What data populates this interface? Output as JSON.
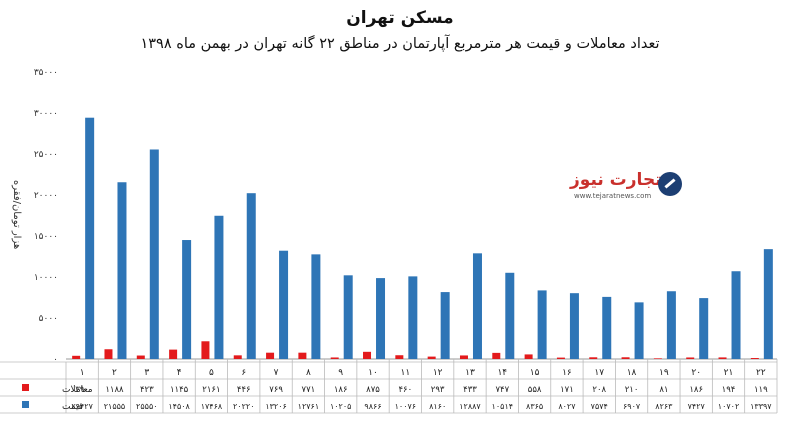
{
  "chart_data": {
    "type": "bar",
    "title": "مسکن تهران",
    "subtitle": "تعداد معاملات و قیمت هر مترمربع آپارتمان در مناطق ۲۲ گانه تهران در بهمن ماه ۱۳۹۸",
    "ylabel": "هزار تومان/فقره",
    "ylim": [
      0,
      35000
    ],
    "yticks": [
      "۰",
      "۵۰۰۰",
      "۱۰۰۰۰",
      "۱۵۰۰۰",
      "۲۰۰۰۰",
      "۲۵۰۰۰",
      "۳۰۰۰۰",
      "۳۵۰۰۰"
    ],
    "yticks_values": [
      0,
      5000,
      10000,
      15000,
      20000,
      25000,
      30000,
      35000
    ],
    "grid": false,
    "categories": [
      "۱",
      "۲",
      "۳",
      "۴",
      "۵",
      "۶",
      "۷",
      "۸",
      "۹",
      "۱۰",
      "۱۱",
      "۱۲",
      "۱۳",
      "۱۴",
      "۱۵",
      "۱۶",
      "۱۷",
      "۱۸",
      "۱۹",
      "۲۰",
      "۲۱",
      "۲۲"
    ],
    "series": [
      {
        "name": "معاملات",
        "color": "#e31a1c",
        "values": [
          390,
          1188,
          423,
          1145,
          2161,
          446,
          769,
          771,
          186,
          875,
          460,
          293,
          433,
          747,
          558,
          171,
          208,
          210,
          81,
          186,
          194,
          119
        ],
        "labels": [
          "۳۹۰",
          "۱۱۸۸",
          "۴۲۳",
          "۱۱۴۵",
          "۲۱۶۱",
          "۴۴۶",
          "۷۶۹",
          "۷۷۱",
          "۱۸۶",
          "۸۷۵",
          "۴۶۰",
          "۲۹۳",
          "۴۳۳",
          "۷۴۷",
          "۵۵۸",
          "۱۷۱",
          "۲۰۸",
          "۲۱۰",
          "۸۱",
          "۱۸۶",
          "۱۹۴",
          "۱۱۹"
        ]
      },
      {
        "name": "قیمت",
        "color": "#2e75b6",
        "values": [
          29427,
          21555,
          25550,
          14508,
          17468,
          20220,
          13206,
          12761,
          10205,
          9866,
          10076,
          8160,
          12887,
          10514,
          8365,
          8027,
          7574,
          6907,
          8263,
          7427,
          10702,
          13397
        ],
        "labels": [
          "۲۹۴۲۷",
          "۲۱۵۵۵",
          "۲۵۵۵۰",
          "۱۴۵۰۸",
          "۱۷۴۶۸",
          "۲۰۲۲۰",
          "۱۳۲۰۶",
          "۱۲۷۶۱",
          "۱۰۲۰۵",
          "۹۸۶۶",
          "۱۰۰۷۶",
          "۸۱۶۰",
          "۱۲۸۸۷",
          "۱۰۵۱۴",
          "۸۳۶۵",
          "۸۰۲۷",
          "۷۵۷۴",
          "۶۹۰۷",
          "۸۲۶۳",
          "۷۴۲۷",
          "۱۰۷۰۲",
          "۱۳۳۹۷"
        ]
      }
    ]
  },
  "watermark": {
    "brand": "تجارت نیوز",
    "url": "www.tejaratnews.com"
  }
}
